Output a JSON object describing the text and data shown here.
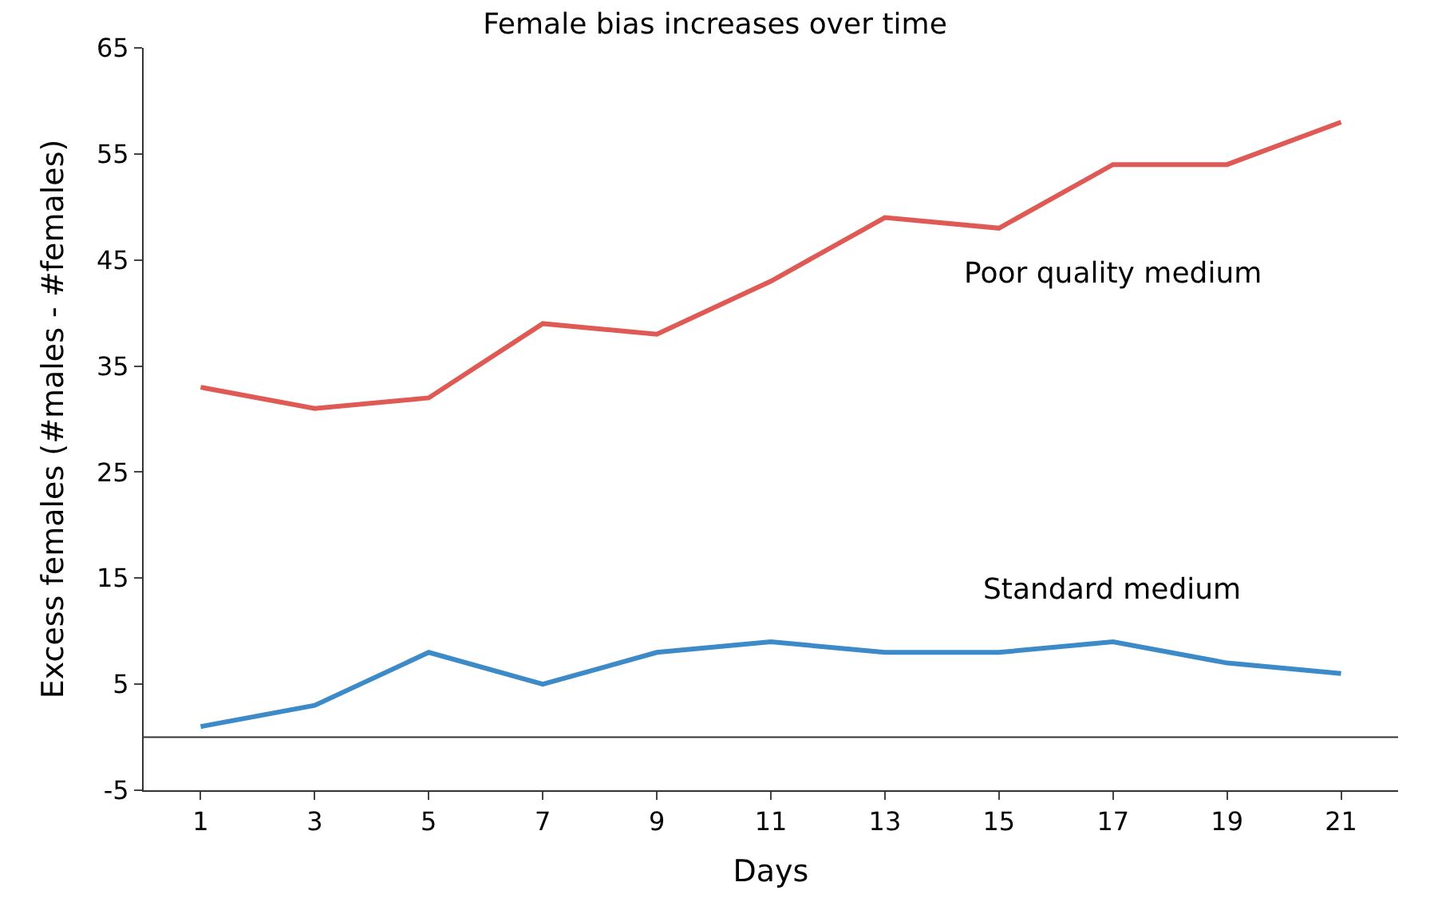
{
  "chart_data": {
    "type": "line",
    "title": "Female bias increases over time",
    "xlabel": "Days",
    "ylabel": "Excess females (#males - #females)",
    "x": [
      1,
      3,
      5,
      7,
      9,
      11,
      13,
      15,
      17,
      19,
      21
    ],
    "xlim": [
      0,
      22
    ],
    "xticks": [
      1,
      3,
      5,
      7,
      9,
      11,
      13,
      15,
      17,
      19,
      21
    ],
    "ylim": [
      -5,
      65
    ],
    "yticks": [
      -5,
      5,
      15,
      25,
      35,
      45,
      55,
      65
    ],
    "legend": false,
    "marker": "none",
    "line_style": "solid",
    "series": [
      {
        "name": "Poor quality medium",
        "color": "#e05a55",
        "values": [
          33,
          31,
          32,
          39,
          38,
          43,
          49,
          48,
          54,
          54,
          58
        ]
      },
      {
        "name": "Standard medium",
        "color": "#3d8ac8",
        "values": [
          1,
          3,
          8,
          5,
          8,
          9,
          8,
          8,
          9,
          7,
          6
        ]
      }
    ]
  }
}
